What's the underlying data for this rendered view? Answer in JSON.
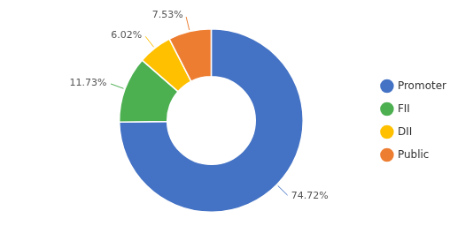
{
  "chart_data": {
    "type": "doughnut",
    "categories": [
      "Promoter",
      "FII",
      "DII",
      "Public"
    ],
    "values": [
      74.72,
      11.73,
      6.02,
      7.53
    ],
    "value_labels": [
      "74.72%",
      "11.73%",
      "6.02%",
      "7.53%"
    ],
    "colors": [
      "#4472C4",
      "#4CAF50",
      "#FFC000",
      "#ED7D31"
    ],
    "data_labels": true,
    "legend": "right"
  }
}
